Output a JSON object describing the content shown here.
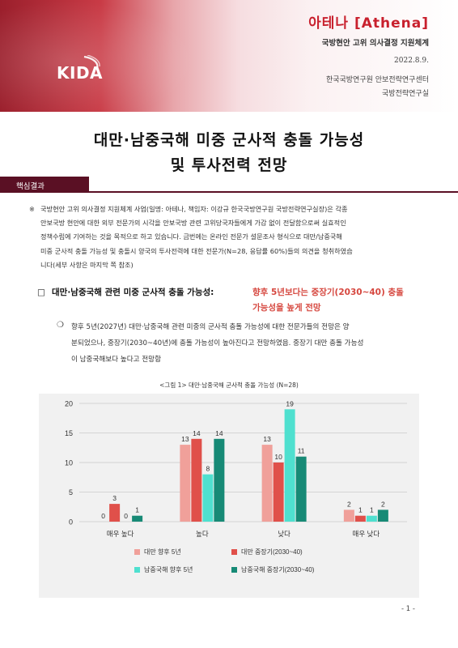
{
  "header": {
    "brand_name": "아테나 [Athena]",
    "brand_subtitle": "국방현안 고위 의사결정 지원체계",
    "logo_text": "KIDA",
    "date": "2022.8.9.",
    "org_line1": "한국국방연구원 안보전략연구센터",
    "org_line2": "국방전략연구실",
    "accent_color": "#c8202d"
  },
  "title": {
    "line1": "대만·남중국해 미중 군사적 충돌 가능성",
    "line2": "및 투사전력 전망"
  },
  "section": {
    "label": "핵심결과"
  },
  "note": {
    "mark": "※",
    "lines": [
      "국방현안 고위 의사결정 지원체계 사업(일명: 아테나, 책임자: 이강규 한국국방연구원 국방전략연구실장)은 각종",
      "안보국방 현안에 대한 외부 전문가의 시각을 안보국방 관련 고위당국자들에게 가감 없이 전달함으로써 실효적인",
      "정책수립에 기여하는 것을 목적으로 하고 있습니다. 금번에는 온라인 전문가 설문조사 형식으로 대만/남중국해",
      "미중 군사적 충돌 가능성 및 충돌시 양국의 투사전력에 대한 전문가(N=28, 응답률 60%)들의 의견을 청취하였습",
      "니다(세부 사항은 마지막 쪽 참조)"
    ]
  },
  "heading": {
    "box": "□",
    "main": "대만·남중국해 관련 미중 군사적 충돌 가능성:",
    "highlight_line1": "향후 5년보다는 중장기(2030~40) 충돌",
    "highlight_line2": "가능성을 높게 전망",
    "highlight_color": "#d6473f"
  },
  "bullet": {
    "mark": "❍",
    "lines": [
      "향후 5년(2027년) 대만·남중국해 관련 미중의 군사적 충돌 가능성에 대한 전문가들의 전망은 양",
      "분되었으나, 중장기(2030~40년)에 충돌 가능성이 높아진다고 전망하였음. 중장기 대만 충돌 가능성",
      "이 남중국해보다 높다고 전망함"
    ]
  },
  "figure": {
    "caption": "<그림 1> 대만·남중국해 군사적 충돌 가능성 (N=28)"
  },
  "chart_data": {
    "type": "bar",
    "categories": [
      "매우 높다",
      "높다",
      "낮다",
      "매우 낮다"
    ],
    "series": [
      {
        "name": "대만 향후 5년",
        "values": [
          0,
          13,
          13,
          2
        ],
        "color": "#f0a09a"
      },
      {
        "name": "대만 중장기(2030~40)",
        "values": [
          3,
          14,
          10,
          1
        ],
        "color": "#e0504a"
      },
      {
        "name": "남중국해 향후 5년",
        "values": [
          0,
          8,
          19,
          1
        ],
        "color": "#4fe0cf"
      },
      {
        "name": "남중국해 중장기(2030~40)",
        "values": [
          1,
          14,
          11,
          2
        ],
        "color": "#178a76"
      }
    ],
    "ylim": [
      0,
      20
    ],
    "yticks": [
      0,
      5,
      10,
      15,
      20
    ],
    "grid": true,
    "legend_position": "bottom"
  },
  "page": {
    "number": "- 1 -"
  }
}
